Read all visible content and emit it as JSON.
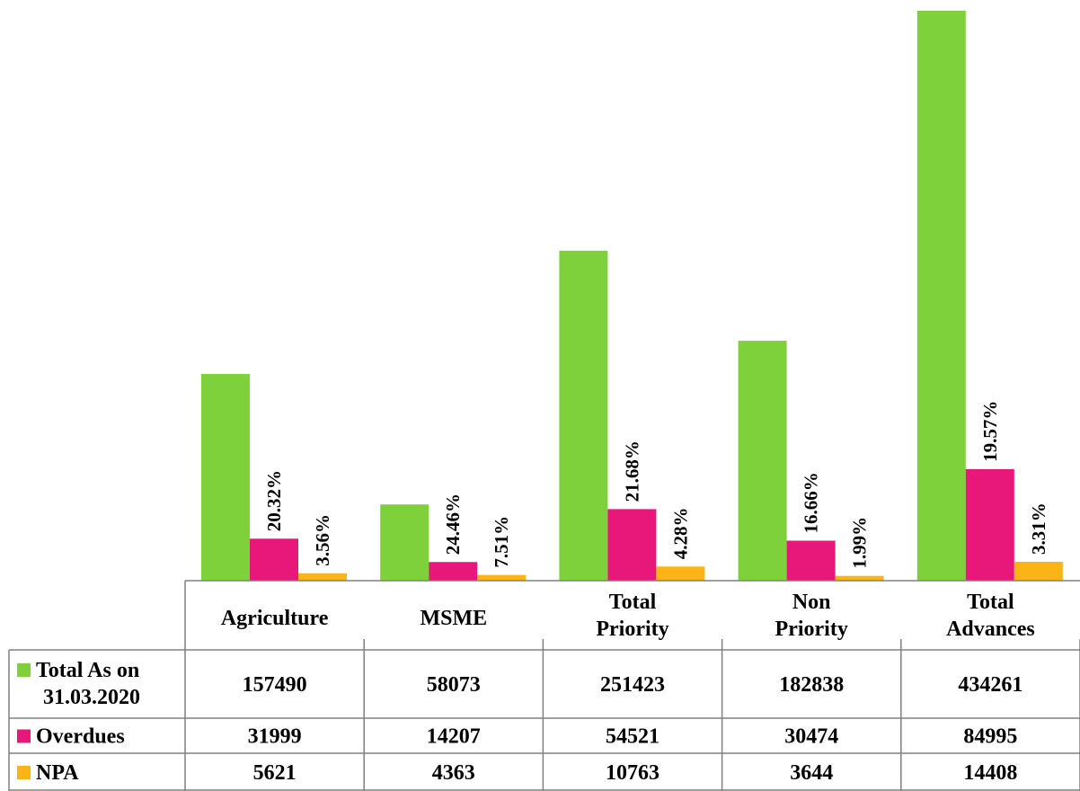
{
  "chart_data": {
    "type": "bar",
    "title": "",
    "xlabel": "",
    "ylabel": "",
    "ylim": [
      0,
      450000
    ],
    "grid": false,
    "legend": "left of data table",
    "categories": [
      "Agriculture",
      "MSME",
      "Total Priority",
      "Non Priority",
      "Total Advances"
    ],
    "series": [
      {
        "name": "Total As on 31.03.2020",
        "color": "#7ed13b",
        "values": [
          157490,
          58073,
          251423,
          182838,
          434261
        ],
        "labels": [
          "",
          "",
          "",
          "",
          ""
        ]
      },
      {
        "name": "Overdues",
        "color": "#e8187a",
        "values": [
          31999,
          14207,
          54521,
          30474,
          84995
        ],
        "labels": [
          "20.32%",
          "24.46%",
          "21.68%",
          "16.66%",
          "19.57%"
        ]
      },
      {
        "name": "NPA",
        "color": "#fbb415",
        "values": [
          5621,
          4363,
          10763,
          3644,
          14408
        ],
        "labels": [
          "3.56%",
          "7.51%",
          "4.28%",
          "1.99%",
          "3.31%"
        ]
      }
    ],
    "data_table": true
  }
}
